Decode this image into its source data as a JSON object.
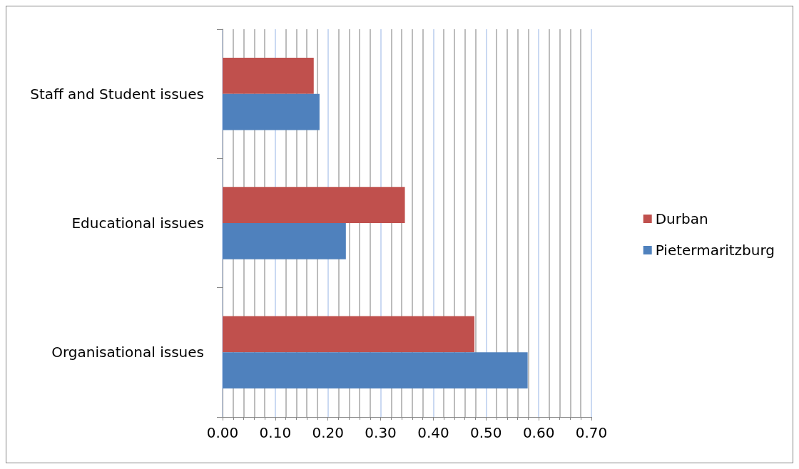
{
  "chart_data": {
    "type": "bar",
    "orientation": "horizontal",
    "categories": [
      "Staff and Student issues",
      "Educational issues",
      "Organisational issues"
    ],
    "series": [
      {
        "name": "Durban",
        "color": "#c0504d",
        "values": [
          0.173,
          0.346,
          0.478
        ]
      },
      {
        "name": "Pietermaritzburg",
        "color": "#4f81bd",
        "values": [
          0.184,
          0.234,
          0.579
        ]
      }
    ],
    "xlim": [
      0,
      0.7
    ],
    "xticks": [
      {
        "value": 0,
        "label": "0.00"
      },
      {
        "value": 0.1,
        "label": "0.10"
      },
      {
        "value": 0.2,
        "label": "0.20"
      },
      {
        "value": 0.3,
        "label": "0.30"
      },
      {
        "value": 0.4,
        "label": "0.40"
      },
      {
        "value": 0.5,
        "label": "0.50"
      },
      {
        "value": 0.6,
        "label": "0.60"
      },
      {
        "value": 0.7,
        "label": "0.70"
      }
    ],
    "grid": "x",
    "legend": "right"
  }
}
